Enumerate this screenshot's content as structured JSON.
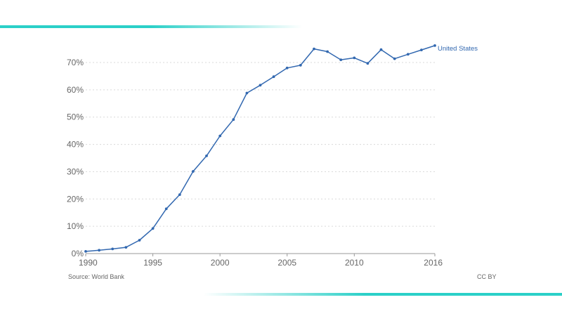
{
  "chart_data": {
    "type": "line",
    "title": "",
    "xlabel": "",
    "ylabel": "",
    "x": [
      1990,
      1991,
      1992,
      1993,
      1994,
      1995,
      1996,
      1997,
      1998,
      1999,
      2000,
      2001,
      2002,
      2003,
      2004,
      2005,
      2006,
      2007,
      2008,
      2009,
      2010,
      2011,
      2012,
      2013,
      2014,
      2015,
      2016
    ],
    "series": [
      {
        "name": "United States",
        "values": [
          0.8,
          1.2,
          1.7,
          2.3,
          4.9,
          9.2,
          16.4,
          21.6,
          30.1,
          35.8,
          43.1,
          49.1,
          58.8,
          61.7,
          64.8,
          68.0,
          69.0,
          75.0,
          74.0,
          71.0,
          71.7,
          69.7,
          74.7,
          71.4,
          73.0,
          74.6,
          76.2
        ]
      }
    ],
    "xlim": [
      1990,
      2016
    ],
    "ylim": [
      0,
      70
    ],
    "x_tick_labels": [
      "1990",
      "1995",
      "2000",
      "2005",
      "2010",
      "2016"
    ],
    "y_tick_labels": [
      "0%",
      "10%",
      "20%",
      "30%",
      "40%",
      "50%",
      "60%",
      "70%"
    ],
    "grid": "horizontal dotted",
    "series_label_placement": "end of line",
    "colors": {
      "line": "#3268b0",
      "accent_band": "#2bd0c8"
    }
  },
  "footer": {
    "source": "Source: World Bank",
    "license": "CC BY"
  }
}
